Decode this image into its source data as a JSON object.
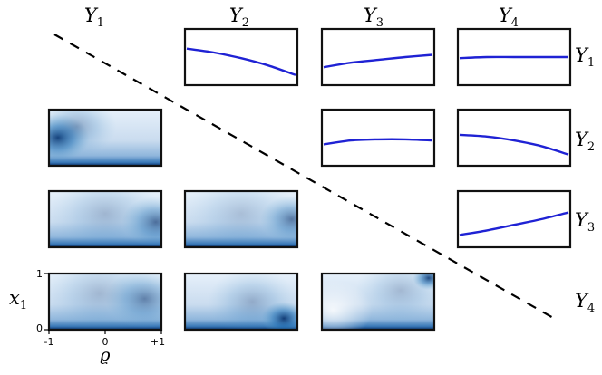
{
  "columns": [
    {
      "sym": "Y",
      "sub": "1"
    },
    {
      "sym": "Y",
      "sub": "2"
    },
    {
      "sym": "Y",
      "sub": "3"
    },
    {
      "sym": "Y",
      "sub": "4"
    }
  ],
  "rows": [
    {
      "sym": "Y",
      "sub": "1"
    },
    {
      "sym": "Y",
      "sub": "2"
    },
    {
      "sym": "Y",
      "sub": "3"
    },
    {
      "sym": "Y",
      "sub": "4"
    }
  ],
  "axes": {
    "y_label": {
      "sym": "x",
      "sub": "1"
    },
    "x_label": "ϱ",
    "y_ticks": [
      "1",
      "0"
    ],
    "x_ticks": [
      "-1",
      "0",
      "+1"
    ]
  },
  "colors": {
    "curve": "#1f22d4",
    "heatmap_low": "#ffffff",
    "heatmap_high": "#08306b",
    "frame": "#111111",
    "diagonal": "#000000"
  },
  "upper_panels": [
    {
      "row": 1,
      "col": 2,
      "trend": [
        0.35,
        0.42,
        0.52,
        0.65,
        0.82
      ]
    },
    {
      "row": 1,
      "col": 3,
      "trend": [
        0.68,
        0.6,
        0.55,
        0.5,
        0.46
      ]
    },
    {
      "row": 1,
      "col": 4,
      "trend": [
        0.52,
        0.5,
        0.5,
        0.5,
        0.5
      ]
    },
    {
      "row": 2,
      "col": 3,
      "trend": [
        0.62,
        0.55,
        0.53,
        0.53,
        0.55
      ]
    },
    {
      "row": 2,
      "col": 4,
      "trend": [
        0.45,
        0.48,
        0.55,
        0.65,
        0.8
      ]
    },
    {
      "row": 3,
      "col": 4,
      "trend": [
        0.78,
        0.7,
        0.6,
        0.5,
        0.38
      ]
    }
  ],
  "lower_panels": [
    {
      "row": 2,
      "col": 1,
      "blobs": [
        {
          "u": 0.08,
          "v": 0.5,
          "w": 0.28,
          "a": 0.95
        },
        {
          "u": 0.25,
          "v": 0.7,
          "w": 0.35,
          "a": 0.35
        }
      ]
    },
    {
      "row": 3,
      "col": 1,
      "blobs": [
        {
          "u": 0.95,
          "v": 0.45,
          "w": 0.3,
          "a": 0.65
        },
        {
          "u": 0.5,
          "v": 0.6,
          "w": 0.5,
          "a": 0.25
        }
      ]
    },
    {
      "row": 3,
      "col": 2,
      "blobs": [
        {
          "u": 0.95,
          "v": 0.5,
          "w": 0.28,
          "a": 0.6
        },
        {
          "u": 0.5,
          "v": 0.6,
          "w": 0.5,
          "a": 0.2
        }
      ]
    },
    {
      "row": 4,
      "col": 1,
      "blobs": [
        {
          "u": 0.85,
          "v": 0.55,
          "w": 0.35,
          "a": 0.55
        },
        {
          "u": 0.45,
          "v": 0.65,
          "w": 0.5,
          "a": 0.25
        }
      ]
    },
    {
      "row": 4,
      "col": 2,
      "blobs": [
        {
          "u": 0.88,
          "v": 0.2,
          "w": 0.2,
          "a": 0.95
        },
        {
          "u": 0.6,
          "v": 0.5,
          "w": 0.4,
          "a": 0.3
        }
      ]
    },
    {
      "row": 4,
      "col": 3,
      "blobs": [
        {
          "u": 0.95,
          "v": 0.92,
          "w": 0.14,
          "a": 0.9
        },
        {
          "u": 0.1,
          "v": 0.35,
          "w": 0.35,
          "a": 0.0
        },
        {
          "u": 0.7,
          "v": 0.7,
          "w": 0.4,
          "a": 0.25
        }
      ]
    }
  ]
}
